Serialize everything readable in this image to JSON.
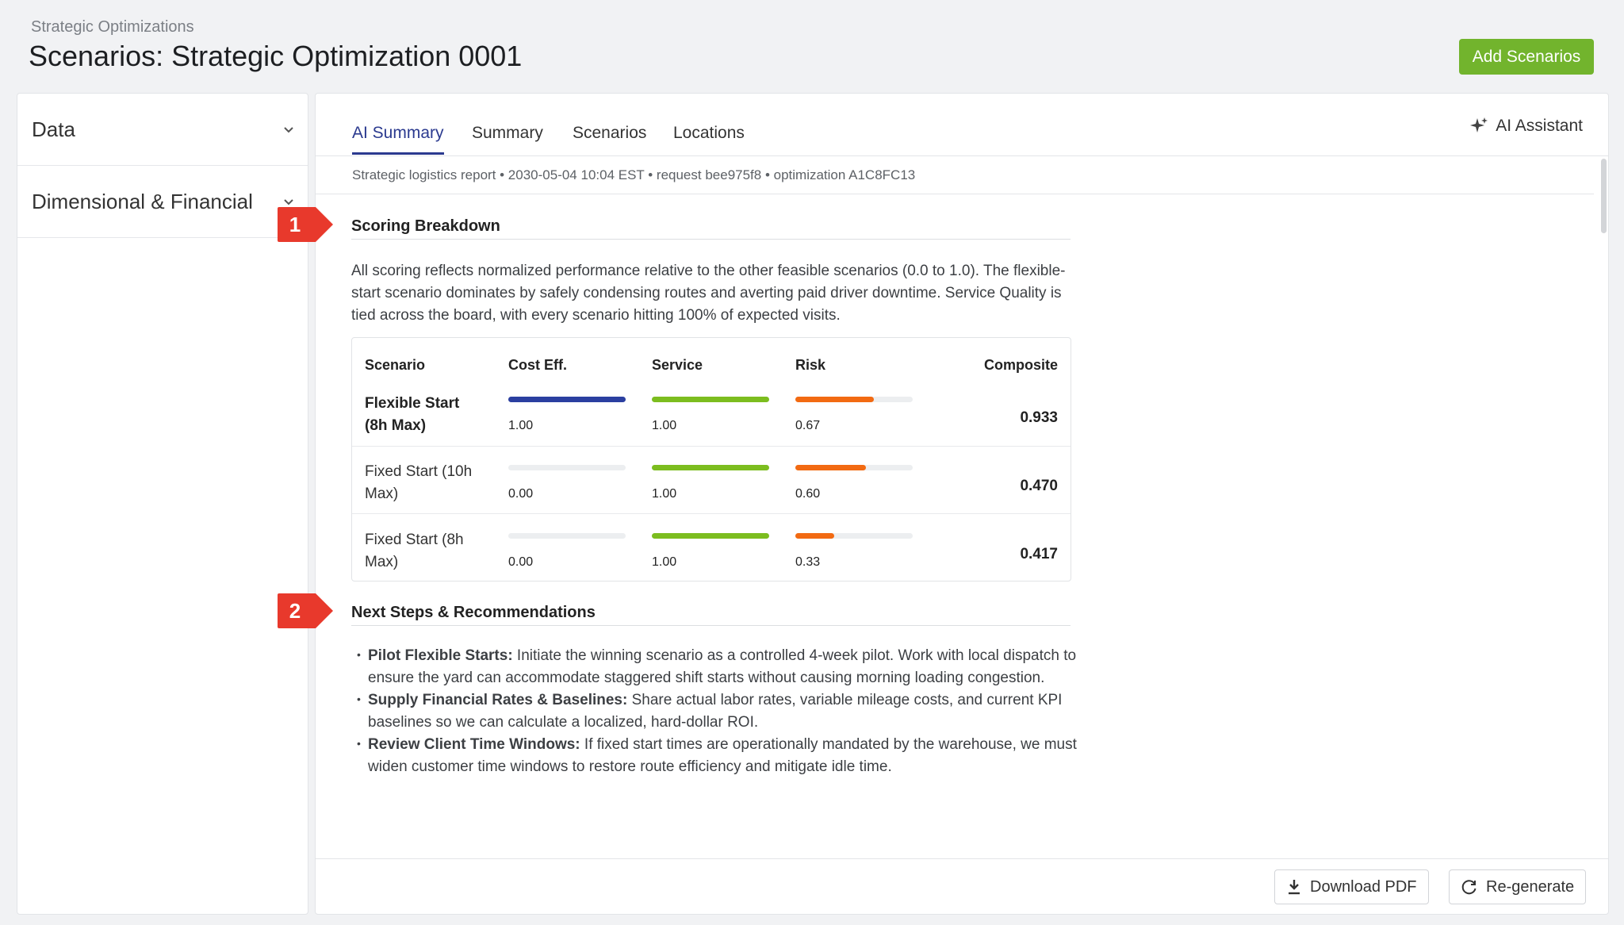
{
  "header": {
    "breadcrumb": "Strategic Optimizations",
    "title": "Scenarios: Strategic Optimization 0001",
    "add_button": "Add Scenarios"
  },
  "sidebar": {
    "items": [
      {
        "label": "Data",
        "icon": "chevron-down-icon"
      },
      {
        "label": "Dimensional & Financial",
        "icon": "chevron-down-icon"
      }
    ]
  },
  "tabs": [
    {
      "label": "AI Summary",
      "active": true
    },
    {
      "label": "Summary",
      "active": false
    },
    {
      "label": "Scenarios",
      "active": false
    },
    {
      "label": "Locations",
      "active": false
    }
  ],
  "ai_assistant": {
    "label": "AI Assistant",
    "icon": "sparkle-icon"
  },
  "report": {
    "meta": "Strategic logistics report • 2030-05-04 10:04 EST • request bee975f8 • optimization A1C8FC13",
    "scoring": {
      "title": "Scoring Breakdown",
      "paragraph": "All scoring reflects normalized performance relative to the other feasible scenarios (0.0 to 1.0). The flexible-start scenario dominates by safely condensing routes and averting paid driver downtime. Service Quality is tied across the board, with every scenario hitting 100% of expected visits.",
      "table": {
        "headers": [
          "Scenario",
          "Cost Eff.",
          "Service",
          "Risk",
          "Composite"
        ],
        "rows": [
          {
            "scenario_l1": "Flexible Start",
            "scenario_l2": "(8h Max)",
            "cost": "1.00",
            "service": "1.00",
            "risk": "0.67",
            "composite": "0.933",
            "winner": true
          },
          {
            "scenario_l1": "Fixed Start (10h",
            "scenario_l2": "Max)",
            "cost": "0.00",
            "service": "1.00",
            "risk": "0.60",
            "composite": "0.470",
            "winner": false
          },
          {
            "scenario_l1": "Fixed Start (8h",
            "scenario_l2": "Max)",
            "cost": "0.00",
            "service": "1.00",
            "risk": "0.33",
            "composite": "0.417",
            "winner": false
          }
        ]
      }
    },
    "next_steps": {
      "title": "Next Steps & Recommendations",
      "items": [
        {
          "bold": "Pilot Flexible Starts:",
          "text": " Initiate the winning scenario as a controlled 4-week pilot. Work with local dispatch to ensure the yard can accommodate staggered shift starts without causing morning loading congestion."
        },
        {
          "bold": "Supply Financial Rates & Baselines:",
          "text": " Share actual labor rates, variable mileage costs, and current KPI baselines so we can calculate a localized, hard-dollar ROI."
        },
        {
          "bold": "Review Client Time Windows:",
          "text": " If fixed start times are operationally mandated by the warehouse, we must widen customer time windows to restore route efficiency and mitigate idle time."
        }
      ]
    }
  },
  "footer": {
    "download_label": "Download PDF",
    "download_icon": "download-icon",
    "regenerate_label": "Re-generate",
    "regenerate_icon": "refresh-icon"
  },
  "callouts": [
    "1",
    "2"
  ],
  "colors": {
    "accent_green": "#72b42d",
    "tab_active": "#2b3a8f",
    "bar_cost": "#2b3fa0",
    "bar_service": "#7cbd1f",
    "bar_risk": "#f26a12",
    "callout_red": "#e8392c"
  }
}
